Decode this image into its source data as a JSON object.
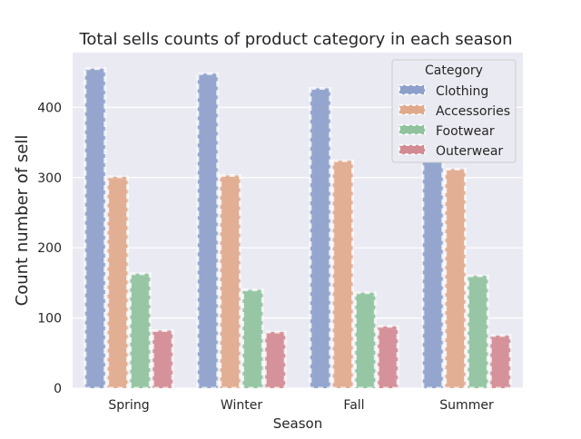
{
  "chart_data": {
    "type": "bar",
    "title": "Total sells counts of product category in each season",
    "xlabel": "Season",
    "ylabel": "Count number of sell",
    "categories": [
      "Spring",
      "Winter",
      "Fall",
      "Summer"
    ],
    "series": [
      {
        "name": "Clothing",
        "values": [
          455,
          448,
          427,
          409
        ],
        "color": "#8da0cb"
      },
      {
        "name": "Accessories",
        "values": [
          301,
          303,
          324,
          312
        ],
        "color": "#e1a98c"
      },
      {
        "name": "Footwear",
        "values": [
          163,
          140,
          136,
          160
        ],
        "color": "#8fc29d"
      },
      {
        "name": "Outerwear",
        "values": [
          82,
          80,
          88,
          75
        ],
        "color": "#d28a93"
      }
    ],
    "ylim": [
      0,
      478
    ],
    "yticks": [
      "0",
      "100",
      "200",
      "300",
      "400"
    ],
    "grid": true,
    "legend_title": "Category",
    "legend_position": "top-right",
    "colors": {
      "background": "#eaeaf2",
      "grid": "#ffffff",
      "text": "#262626",
      "bar_edge": "#ffffff"
    }
  }
}
